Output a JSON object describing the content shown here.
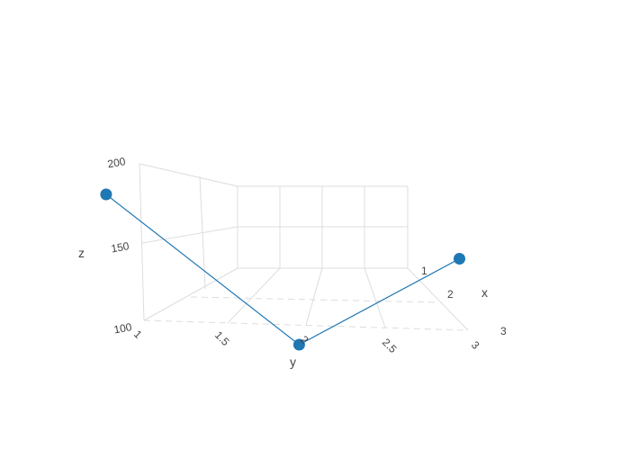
{
  "chart_data": {
    "type": "scatter",
    "mode": "lines+markers",
    "projection": "3d",
    "series": [
      {
        "x": [
          1,
          2,
          3
        ],
        "y": [
          1,
          2,
          3
        ],
        "z": [
          180,
          110,
          190
        ]
      }
    ],
    "colors": {
      "series": "#1f77b4",
      "grid": "#dddddd",
      "text": "#444444"
    },
    "axes": {
      "x": {
        "label": "x",
        "range": [
          1,
          3
        ],
        "ticks": [
          "1",
          "2",
          "3"
        ]
      },
      "y": {
        "label": "y",
        "range": [
          1,
          3
        ],
        "ticks": [
          "1",
          "1.5",
          "2",
          "2.5",
          "3"
        ]
      },
      "z": {
        "label": "z",
        "range": [
          100,
          200
        ],
        "ticks": [
          "100",
          "150",
          "200"
        ]
      }
    },
    "grid": true,
    "legend": "none"
  }
}
